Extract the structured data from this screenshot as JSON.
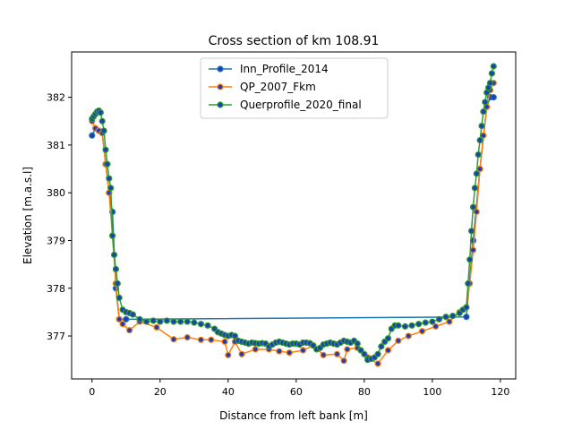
{
  "chart_data": {
    "type": "line",
    "title": "Cross section of km 108.91",
    "xlabel": "Distance from left bank [m]",
    "ylabel": "Elevation [m.a.s.l]",
    "xlim": [
      -6,
      124.5
    ],
    "ylim": [
      376.1,
      382.95
    ],
    "xticks": [
      0,
      20,
      40,
      60,
      80,
      100,
      120
    ],
    "yticks": [
      377,
      378,
      379,
      380,
      381,
      382
    ],
    "grid": false,
    "legend_position": "upper-center",
    "marker": "circle",
    "marker_face_color": "#1f3fb4",
    "series": [
      {
        "name": "Inn_Profile_2014",
        "color": "#1f77b4",
        "x": [
          0,
          1,
          2,
          3,
          4,
          5,
          6,
          7,
          8,
          10,
          110,
          112,
          114,
          116,
          117,
          118
        ],
        "y": [
          381.2,
          381.35,
          381.3,
          381.25,
          380.6,
          380.0,
          379.6,
          378.0,
          377.35,
          377.35,
          377.4,
          379.0,
          380.5,
          381.8,
          382.0,
          382.0
        ]
      },
      {
        "name": "QP_2007_Fkm",
        "color": "#ff7f0e",
        "x": [
          0,
          1,
          2,
          3,
          4,
          5,
          6,
          7,
          8,
          9,
          11,
          14,
          19,
          24,
          28,
          32,
          35,
          39,
          40,
          42,
          44,
          48,
          52,
          55,
          58,
          62,
          65,
          68,
          72,
          74,
          75,
          78,
          81,
          84,
          87,
          90,
          93,
          97,
          101,
          105,
          108,
          110,
          111,
          112,
          113,
          114,
          115,
          116,
          117,
          118
        ],
        "y": [
          381.5,
          381.35,
          381.3,
          381.25,
          380.6,
          380.0,
          379.1,
          378.1,
          377.35,
          377.25,
          377.12,
          377.3,
          377.18,
          376.93,
          376.97,
          376.92,
          376.92,
          376.88,
          376.6,
          376.88,
          376.62,
          376.72,
          376.72,
          376.68,
          376.65,
          376.7,
          376.8,
          376.6,
          376.62,
          376.48,
          376.72,
          376.75,
          376.55,
          376.42,
          376.7,
          376.9,
          377.0,
          377.1,
          377.2,
          377.3,
          377.5,
          377.6,
          378.1,
          378.8,
          379.6,
          380.5,
          381.2,
          381.8,
          382.15,
          382.3
        ]
      },
      {
        "name": "Querprofile_2020_final",
        "color": "#2ca02c",
        "x": [
          0,
          0.5,
          1,
          1.5,
          2,
          2.5,
          3,
          3.5,
          4,
          4.5,
          5,
          5.5,
          6,
          6.5,
          7,
          7.5,
          8,
          9,
          10,
          11,
          12,
          14,
          16,
          18,
          20,
          22,
          24,
          26,
          28,
          30,
          32,
          34,
          36,
          37,
          38,
          39,
          40,
          41,
          42,
          43,
          44,
          45,
          46,
          47,
          48,
          49,
          50,
          51,
          52,
          53,
          54,
          55,
          56,
          57,
          58,
          59,
          60,
          61,
          62,
          63,
          64,
          65,
          66,
          67,
          68,
          69,
          70,
          71,
          72,
          73,
          74,
          75,
          76,
          77,
          78,
          79,
          80,
          81,
          82,
          83,
          84,
          85,
          86,
          87,
          88,
          89,
          90,
          92,
          94,
          96,
          98,
          100,
          102,
          104,
          106,
          108,
          109,
          110,
          110.5,
          111,
          111.5,
          112,
          112.5,
          113,
          113.5,
          114,
          114.5,
          115,
          115.5,
          116,
          116.5,
          117,
          117.5,
          118
        ],
        "y": [
          381.55,
          381.6,
          381.65,
          381.7,
          381.72,
          381.68,
          381.5,
          381.3,
          380.9,
          380.6,
          380.3,
          380.1,
          379.1,
          378.7,
          378.4,
          378.1,
          377.8,
          377.55,
          377.5,
          377.48,
          377.45,
          377.35,
          377.3,
          377.32,
          377.3,
          377.32,
          377.3,
          377.3,
          377.3,
          377.28,
          377.25,
          377.22,
          377.15,
          377.08,
          377.05,
          377.02,
          377.0,
          377.02,
          377.0,
          376.9,
          376.88,
          376.86,
          376.84,
          376.86,
          376.85,
          376.84,
          376.85,
          376.84,
          376.78,
          376.82,
          376.86,
          376.88,
          376.86,
          376.84,
          376.82,
          376.84,
          376.84,
          376.82,
          376.86,
          376.86,
          376.85,
          376.8,
          376.72,
          376.75,
          376.82,
          376.84,
          376.86,
          376.84,
          376.82,
          376.86,
          376.9,
          376.88,
          376.86,
          376.9,
          376.84,
          376.7,
          376.62,
          376.5,
          376.52,
          376.55,
          376.62,
          376.78,
          376.88,
          376.95,
          377.15,
          377.22,
          377.22,
          377.2,
          377.22,
          377.25,
          377.28,
          377.3,
          377.35,
          377.4,
          377.42,
          377.48,
          377.55,
          377.6,
          378.1,
          378.6,
          379.2,
          379.7,
          380.1,
          380.4,
          380.8,
          381.1,
          381.4,
          381.7,
          381.9,
          382.1,
          382.2,
          382.3,
          382.5,
          382.65
        ]
      }
    ]
  }
}
